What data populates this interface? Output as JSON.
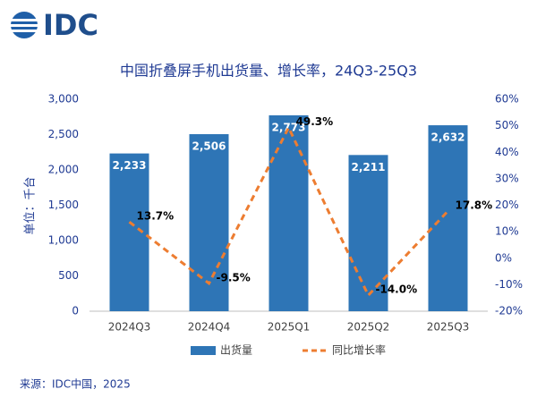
{
  "logo": "IDC",
  "source": "来源：IDC中国，2025",
  "chart_data": {
    "type": "bar",
    "title": "中国折叠屏手机出货量、增长率，24Q3-25Q3",
    "y_label": "单位：千台",
    "categories": [
      "2024Q3",
      "2024Q4",
      "2025Q1",
      "2025Q2",
      "2025Q3"
    ],
    "series": [
      {
        "name": "出货量",
        "type": "bar",
        "color": "#2e75b6",
        "values": [
          2233,
          2506,
          2773,
          2211,
          2632
        ],
        "value_labels": [
          "2,233",
          "2,506",
          "2,773",
          "2,211",
          "2,632"
        ]
      },
      {
        "name": "同比增长率",
        "type": "line",
        "axis": "y2",
        "color": "#ed7d31",
        "values": [
          13.7,
          -9.5,
          49.3,
          -14.0,
          17.8
        ],
        "value_labels": [
          "13.7%",
          "-9.5%",
          "49.3%",
          "-14.0%",
          "17.8%"
        ]
      }
    ],
    "ylim": [
      0,
      3000
    ],
    "yticks": [
      0,
      {
        "value": 500,
        "label": "500"
      },
      {
        "value": 1000,
        "label": "1,000"
      },
      {
        "value": 1500,
        "label": "1,500"
      },
      {
        "value": 2000,
        "label": "2,000"
      },
      {
        "value": 2500,
        "label": "2,500"
      },
      {
        "value": 3000,
        "label": "3,000"
      }
    ],
    "y2lim": [
      -20,
      60
    ],
    "y2ticks": [
      {
        "value": -20,
        "label": "-20%"
      },
      {
        "value": -10,
        "label": "-10%"
      },
      {
        "value": 0,
        "label": "0%"
      },
      {
        "value": 10,
        "label": "10%"
      },
      {
        "value": 20,
        "label": "20%"
      },
      {
        "value": 30,
        "label": "30%"
      },
      {
        "value": 40,
        "label": "40%"
      },
      {
        "value": 50,
        "label": "50%"
      },
      {
        "value": 60,
        "label": "60%"
      }
    ]
  }
}
